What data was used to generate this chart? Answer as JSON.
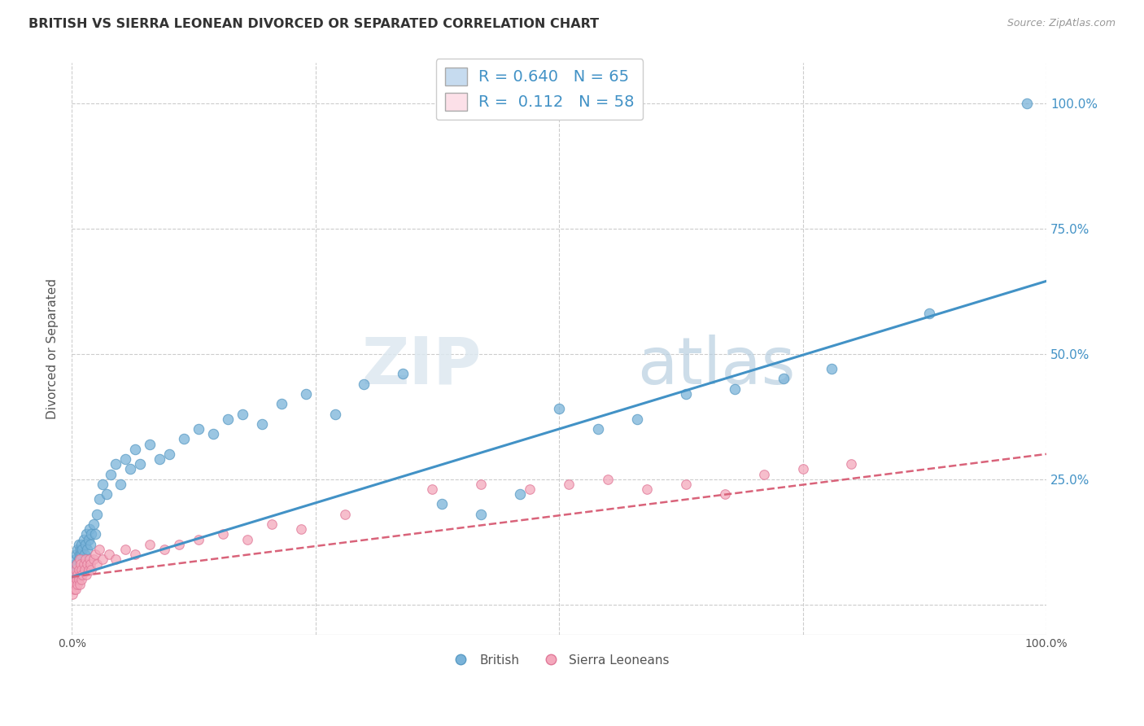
{
  "title": "BRITISH VS SIERRA LEONEAN DIVORCED OR SEPARATED CORRELATION CHART",
  "source_text": "Source: ZipAtlas.com",
  "ylabel": "Divorced or Separated",
  "xlabel": "",
  "watermark_zip": "ZIP",
  "watermark_atlas": "atlas",
  "legend_r1": "R = 0.640",
  "legend_n1": "N = 65",
  "legend_r2": "R =  0.112",
  "legend_n2": "N = 58",
  "blue_color": "#7ab3d9",
  "blue_edge": "#5a9bc4",
  "pink_color": "#f4a8bc",
  "pink_edge": "#e07898",
  "blue_light": "#c6dbef",
  "pink_light": "#fce0e8",
  "trend_blue": "#4292c6",
  "trend_pink": "#d9637a",
  "xlim": [
    0.0,
    1.0
  ],
  "ylim": [
    -0.06,
    1.08
  ],
  "xticks": [
    0.0,
    0.25,
    0.5,
    0.75,
    1.0
  ],
  "xtick_labels": [
    "0.0%",
    "",
    "",
    "",
    "100.0%"
  ],
  "ytick_positions": [
    0.0,
    0.25,
    0.5,
    0.75,
    1.0
  ],
  "ytick_labels": [
    "",
    "25.0%",
    "50.0%",
    "75.0%",
    "100.0%"
  ],
  "blue_x": [
    0.002,
    0.003,
    0.004,
    0.004,
    0.005,
    0.005,
    0.006,
    0.006,
    0.007,
    0.007,
    0.008,
    0.008,
    0.009,
    0.009,
    0.01,
    0.01,
    0.011,
    0.012,
    0.013,
    0.014,
    0.015,
    0.016,
    0.017,
    0.018,
    0.019,
    0.02,
    0.022,
    0.024,
    0.026,
    0.028,
    0.032,
    0.036,
    0.04,
    0.045,
    0.05,
    0.055,
    0.06,
    0.065,
    0.07,
    0.08,
    0.09,
    0.1,
    0.115,
    0.13,
    0.145,
    0.16,
    0.175,
    0.195,
    0.215,
    0.24,
    0.27,
    0.3,
    0.34,
    0.38,
    0.42,
    0.46,
    0.5,
    0.54,
    0.58,
    0.63,
    0.68,
    0.73,
    0.78,
    0.88,
    0.98
  ],
  "blue_y": [
    0.07,
    0.08,
    0.06,
    0.09,
    0.07,
    0.1,
    0.08,
    0.11,
    0.09,
    0.12,
    0.1,
    0.08,
    0.11,
    0.09,
    0.1,
    0.12,
    0.11,
    0.13,
    0.1,
    0.12,
    0.14,
    0.11,
    0.13,
    0.15,
    0.12,
    0.14,
    0.16,
    0.14,
    0.18,
    0.21,
    0.24,
    0.22,
    0.26,
    0.28,
    0.24,
    0.29,
    0.27,
    0.31,
    0.28,
    0.32,
    0.29,
    0.3,
    0.33,
    0.35,
    0.34,
    0.37,
    0.38,
    0.36,
    0.4,
    0.42,
    0.38,
    0.44,
    0.46,
    0.2,
    0.18,
    0.22,
    0.39,
    0.35,
    0.37,
    0.42,
    0.43,
    0.45,
    0.47,
    0.58,
    1.0
  ],
  "pink_x": [
    0.001,
    0.002,
    0.002,
    0.003,
    0.003,
    0.004,
    0.004,
    0.005,
    0.005,
    0.006,
    0.006,
    0.007,
    0.007,
    0.008,
    0.008,
    0.009,
    0.009,
    0.01,
    0.01,
    0.011,
    0.012,
    0.013,
    0.014,
    0.015,
    0.016,
    0.017,
    0.018,
    0.019,
    0.02,
    0.022,
    0.024,
    0.026,
    0.028,
    0.032,
    0.038,
    0.045,
    0.055,
    0.065,
    0.08,
    0.095,
    0.11,
    0.13,
    0.155,
    0.18,
    0.205,
    0.235,
    0.28,
    0.37,
    0.42,
    0.47,
    0.51,
    0.55,
    0.59,
    0.63,
    0.67,
    0.71,
    0.75,
    0.8
  ],
  "pink_y": [
    0.02,
    0.03,
    0.05,
    0.04,
    0.06,
    0.03,
    0.07,
    0.05,
    0.08,
    0.04,
    0.06,
    0.05,
    0.07,
    0.04,
    0.09,
    0.06,
    0.08,
    0.05,
    0.07,
    0.06,
    0.08,
    0.07,
    0.09,
    0.06,
    0.08,
    0.07,
    0.09,
    0.08,
    0.07,
    0.09,
    0.1,
    0.08,
    0.11,
    0.09,
    0.1,
    0.09,
    0.11,
    0.1,
    0.12,
    0.11,
    0.12,
    0.13,
    0.14,
    0.13,
    0.16,
    0.15,
    0.18,
    0.23,
    0.24,
    0.23,
    0.24,
    0.25,
    0.23,
    0.24,
    0.22,
    0.26,
    0.27,
    0.28
  ],
  "blue_trend_x": [
    0.0,
    1.0
  ],
  "blue_trend_y": [
    0.055,
    0.645
  ],
  "pink_trend_x": [
    0.0,
    1.0
  ],
  "pink_trend_y": [
    0.055,
    0.3
  ],
  "figsize": [
    14.06,
    8.92
  ],
  "dpi": 100
}
